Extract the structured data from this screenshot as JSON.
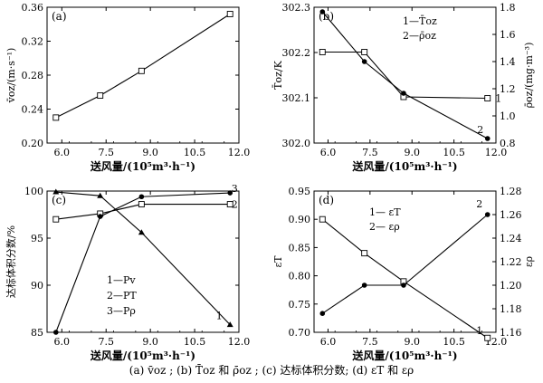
{
  "caption": "(a)  v̄oz ;  (b)  T̄oz 和 ρ̄oz ;  (c)  达标体积分数;  (d) εT 和 ερ",
  "chart_data": [
    {
      "type": "line",
      "panel": "(a)",
      "xlabel": "送风量/(10⁵m³·h⁻¹)",
      "ylabel": "v̄oz/(m·s⁻¹)",
      "xlim": [
        5.5,
        12.0
      ],
      "ylim": [
        0.2,
        0.36
      ],
      "xticks": [
        "6.0",
        "7.5",
        "9.0",
        "10.5",
        "12.0"
      ],
      "yticks": [
        "0.20",
        "0.24",
        "0.28",
        "0.32",
        "0.36"
      ],
      "x": [
        5.8,
        7.3,
        8.7,
        11.7
      ],
      "series": [
        {
          "name": "",
          "marker": "open-square",
          "values": [
            0.23,
            0.256,
            0.285,
            0.352
          ]
        }
      ]
    },
    {
      "type": "line",
      "panel": "(b)",
      "xlabel": "送风量/(10⁵m³·h⁻¹)",
      "ylabel": "T̄oz/K",
      "y2label": "ρ̄oz/(mg·m⁻³)",
      "xlim": [
        5.5,
        12.0
      ],
      "ylim": [
        302.0,
        302.3
      ],
      "y2lim": [
        0.8,
        1.8
      ],
      "xticks": [
        "6.0",
        "7.5",
        "9.0",
        "10.5",
        "12.0"
      ],
      "yticks": [
        "302.0",
        "302.1",
        "302.2",
        "302.3"
      ],
      "y2ticks": [
        "0.8",
        "1.0",
        "1.2",
        "1.4",
        "1.6",
        "1.8"
      ],
      "legend": [
        "1—T̄oz",
        "2—ρ̄oz"
      ],
      "legend_position": "top-right",
      "x": [
        5.8,
        7.3,
        8.7,
        11.7
      ],
      "series": [
        {
          "name": "1—T̄oz",
          "axis": "right",
          "marker": "open-square",
          "end_label": "1",
          "values": [
            1.47,
            1.47,
            1.14,
            1.13
          ]
        },
        {
          "name": "2—ρ̄oz",
          "axis": "left",
          "marker": "filled-circle",
          "end_label": "2",
          "values": [
            302.29,
            302.18,
            302.11,
            302.01
          ]
        }
      ]
    },
    {
      "type": "line",
      "panel": "(c)",
      "xlabel": "送风量/(10⁵m³·h⁻¹)",
      "ylabel": "达标体积分数/%",
      "xlim": [
        5.5,
        12.0
      ],
      "ylim": [
        85,
        100
      ],
      "xticks": [
        "6.0",
        "7.5",
        "9.0",
        "10.5",
        "12.0"
      ],
      "yticks": [
        "85",
        "90",
        "95",
        "100"
      ],
      "legend": [
        "1—Pv",
        "2—PT",
        "3—Pρ"
      ],
      "legend_position": "bottom-center",
      "x": [
        5.8,
        7.3,
        8.7,
        11.7
      ],
      "series": [
        {
          "name": "1—Pv",
          "marker": "filled-triangle",
          "end_label": "1",
          "values": [
            99.9,
            99.5,
            95.6,
            85.8
          ]
        },
        {
          "name": "2—PT",
          "marker": "open-square",
          "end_label": "2",
          "values": [
            97.0,
            97.6,
            98.6,
            98.6
          ]
        },
        {
          "name": "3—Pρ",
          "marker": "filled-circle",
          "end_label": "3",
          "values": [
            85.0,
            97.3,
            99.4,
            99.8
          ]
        }
      ]
    },
    {
      "type": "line",
      "panel": "(d)",
      "xlabel": "送风量/(10⁵m³·h⁻¹)",
      "ylabel": "εT",
      "y2label": "ερ",
      "xlim": [
        5.5,
        12.0
      ],
      "ylim": [
        0.7,
        0.95
      ],
      "y2lim": [
        1.16,
        1.28
      ],
      "xticks": [
        "6.0",
        "7.5",
        "9.0",
        "10.5",
        "12.0"
      ],
      "yticks": [
        "0.70",
        "0.75",
        "0.80",
        "0.85",
        "0.90",
        "0.95"
      ],
      "y2ticks": [
        "1.16",
        "1.18",
        "1.20",
        "1.22",
        "1.24",
        "1.26",
        "1.28"
      ],
      "legend": [
        "1— εT",
        "2— ερ"
      ],
      "legend_position": "top-center",
      "x": [
        5.8,
        7.3,
        8.7,
        11.7
      ],
      "series": [
        {
          "name": "1— εT",
          "axis": "left",
          "marker": "open-square",
          "end_label": "1",
          "values": [
            0.9,
            0.84,
            0.79,
            0.69
          ]
        },
        {
          "name": "2— ερ",
          "axis": "right",
          "marker": "filled-circle",
          "end_label": "2",
          "values": [
            1.176,
            1.2,
            1.2,
            1.26
          ]
        }
      ]
    }
  ]
}
